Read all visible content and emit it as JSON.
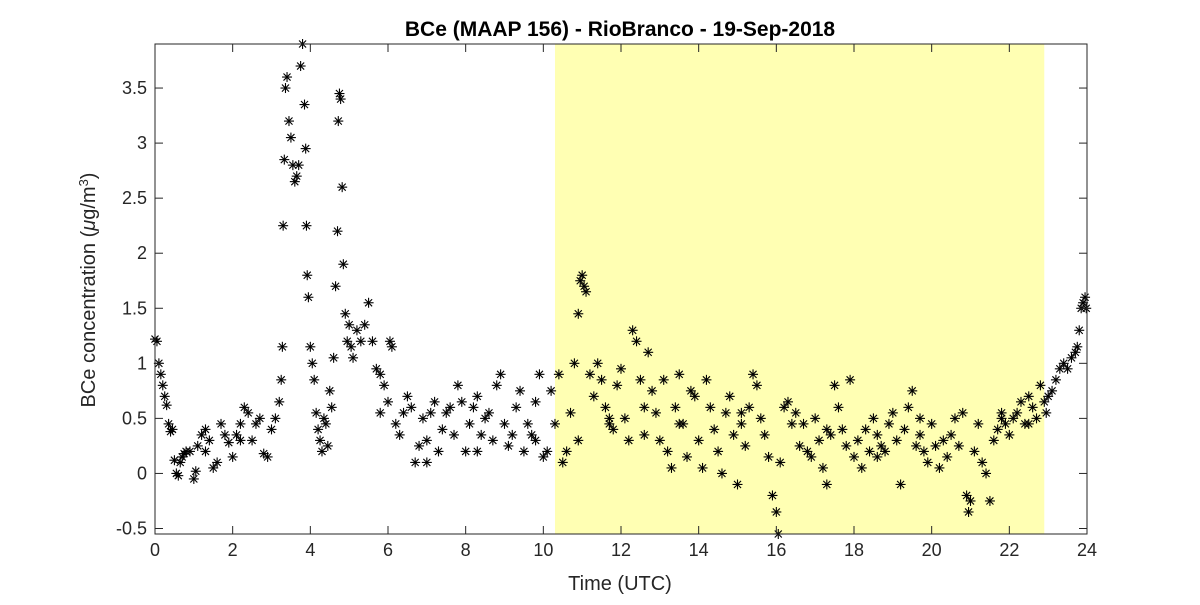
{
  "chart_data": {
    "type": "scatter",
    "title": "BCe (MAAP 156) - RioBranco - 19-Sep-2018",
    "xlabel": "Time (UTC)",
    "ylabel_main": "BCe concentration (",
    "ylabel_mu": "μ",
    "ylabel_unit": "g/m",
    "ylabel_sup": "3",
    "ylabel_close": ")",
    "xlim": [
      0,
      24
    ],
    "ylim": [
      -0.55,
      3.9
    ],
    "x_ticks": [
      0,
      2,
      4,
      6,
      8,
      10,
      12,
      14,
      16,
      18,
      20,
      22,
      24
    ],
    "y_ticks": [
      -0.5,
      0,
      0.5,
      1,
      1.5,
      2,
      2.5,
      3,
      3.5
    ],
    "x_tick_labels": [
      "0",
      "2",
      "4",
      "6",
      "8",
      "10",
      "12",
      "14",
      "16",
      "18",
      "20",
      "22",
      "24"
    ],
    "y_tick_labels": [
      "-0.5",
      "0",
      "0.5",
      "1",
      "1.5",
      "2",
      "2.5",
      "3",
      "3.5"
    ],
    "marker": "asterisk",
    "marker_color": "#000000",
    "daylight_span": {
      "x_start": 10.3,
      "x_end": 22.9,
      "color": "#ffffb3"
    },
    "grid": false,
    "points": [
      [
        0.0,
        1.22
      ],
      [
        0.05,
        1.2
      ],
      [
        0.1,
        1.0
      ],
      [
        0.15,
        0.9
      ],
      [
        0.2,
        0.8
      ],
      [
        0.25,
        0.7
      ],
      [
        0.3,
        0.62
      ],
      [
        0.35,
        0.45
      ],
      [
        0.4,
        0.38
      ],
      [
        0.45,
        0.4
      ],
      [
        0.5,
        0.12
      ],
      [
        0.55,
        0.0
      ],
      [
        0.6,
        -0.02
      ],
      [
        0.65,
        0.1
      ],
      [
        0.7,
        0.15
      ],
      [
        0.75,
        0.18
      ],
      [
        0.8,
        0.2
      ],
      [
        0.9,
        0.2
      ],
      [
        1.0,
        -0.05
      ],
      [
        1.05,
        0.02
      ],
      [
        1.1,
        0.25
      ],
      [
        1.2,
        0.35
      ],
      [
        1.3,
        0.4
      ],
      [
        1.4,
        0.3
      ],
      [
        1.5,
        0.05
      ],
      [
        1.6,
        0.1
      ],
      [
        1.7,
        0.45
      ],
      [
        1.8,
        0.35
      ],
      [
        1.9,
        0.28
      ],
      [
        2.0,
        0.15
      ],
      [
        2.1,
        0.35
      ],
      [
        2.2,
        0.45
      ],
      [
        2.3,
        0.6
      ],
      [
        2.4,
        0.55
      ],
      [
        2.5,
        0.3
      ],
      [
        2.6,
        0.45
      ],
      [
        2.7,
        0.5
      ],
      [
        2.8,
        0.18
      ],
      [
        2.9,
        0.15
      ],
      [
        3.0,
        0.4
      ],
      [
        3.1,
        0.5
      ],
      [
        3.2,
        0.65
      ],
      [
        3.25,
        0.85
      ],
      [
        3.28,
        1.15
      ],
      [
        3.3,
        2.25
      ],
      [
        3.33,
        2.85
      ],
      [
        3.36,
        3.5
      ],
      [
        3.4,
        3.6
      ],
      [
        3.45,
        3.2
      ],
      [
        3.5,
        3.05
      ],
      [
        3.55,
        2.8
      ],
      [
        3.6,
        2.65
      ],
      [
        3.65,
        2.7
      ],
      [
        3.7,
        2.8
      ],
      [
        3.75,
        3.7
      ],
      [
        3.8,
        3.9
      ],
      [
        3.85,
        3.35
      ],
      [
        3.88,
        2.95
      ],
      [
        3.9,
        2.25
      ],
      [
        3.92,
        1.8
      ],
      [
        3.95,
        1.6
      ],
      [
        4.0,
        1.15
      ],
      [
        4.05,
        1.0
      ],
      [
        4.1,
        0.85
      ],
      [
        4.15,
        0.55
      ],
      [
        4.2,
        0.4
      ],
      [
        4.25,
        0.3
      ],
      [
        4.3,
        0.2
      ],
      [
        4.35,
        0.5
      ],
      [
        4.4,
        0.45
      ],
      [
        4.45,
        0.25
      ],
      [
        4.5,
        0.75
      ],
      [
        4.55,
        0.6
      ],
      [
        4.6,
        1.05
      ],
      [
        4.65,
        1.7
      ],
      [
        4.7,
        2.2
      ],
      [
        4.72,
        3.2
      ],
      [
        4.75,
        3.45
      ],
      [
        4.78,
        3.4
      ],
      [
        4.82,
        2.6
      ],
      [
        4.85,
        1.9
      ],
      [
        4.9,
        1.45
      ],
      [
        4.95,
        1.2
      ],
      [
        5.0,
        1.35
      ],
      [
        5.05,
        1.15
      ],
      [
        5.1,
        1.05
      ],
      [
        5.2,
        1.3
      ],
      [
        5.3,
        1.2
      ],
      [
        5.4,
        1.35
      ],
      [
        5.5,
        1.55
      ],
      [
        5.6,
        1.2
      ],
      [
        5.7,
        0.95
      ],
      [
        5.8,
        0.9
      ],
      [
        5.9,
        0.8
      ],
      [
        6.0,
        0.65
      ],
      [
        6.05,
        1.2
      ],
      [
        6.1,
        1.15
      ],
      [
        6.2,
        0.45
      ],
      [
        6.3,
        0.35
      ],
      [
        6.4,
        0.55
      ],
      [
        6.5,
        0.7
      ],
      [
        6.6,
        0.6
      ],
      [
        6.7,
        0.1
      ],
      [
        6.8,
        0.25
      ],
      [
        6.9,
        0.5
      ],
      [
        7.0,
        0.3
      ],
      [
        7.1,
        0.55
      ],
      [
        7.2,
        0.65
      ],
      [
        7.3,
        0.2
      ],
      [
        7.4,
        0.4
      ],
      [
        7.5,
        0.55
      ],
      [
        7.6,
        0.6
      ],
      [
        7.7,
        0.35
      ],
      [
        7.8,
        0.8
      ],
      [
        7.9,
        0.65
      ],
      [
        8.0,
        0.2
      ],
      [
        8.1,
        0.45
      ],
      [
        8.2,
        0.6
      ],
      [
        8.3,
        0.7
      ],
      [
        8.4,
        0.35
      ],
      [
        8.5,
        0.5
      ],
      [
        8.6,
        0.55
      ],
      [
        8.7,
        0.3
      ],
      [
        8.8,
        0.8
      ],
      [
        8.9,
        0.9
      ],
      [
        9.0,
        0.45
      ],
      [
        9.1,
        0.25
      ],
      [
        9.2,
        0.35
      ],
      [
        9.3,
        0.6
      ],
      [
        9.4,
        0.75
      ],
      [
        9.5,
        0.2
      ],
      [
        9.6,
        0.45
      ],
      [
        9.7,
        0.35
      ],
      [
        9.8,
        0.65
      ],
      [
        9.9,
        0.9
      ],
      [
        10.0,
        0.15
      ],
      [
        10.1,
        0.2
      ],
      [
        10.2,
        0.75
      ],
      [
        10.3,
        0.45
      ],
      [
        10.4,
        0.9
      ],
      [
        10.5,
        0.1
      ],
      [
        10.6,
        0.2
      ],
      [
        10.7,
        0.55
      ],
      [
        10.8,
        1.0
      ],
      [
        10.9,
        1.45
      ],
      [
        10.95,
        1.75
      ],
      [
        11.0,
        1.8
      ],
      [
        11.05,
        1.7
      ],
      [
        11.1,
        1.65
      ],
      [
        11.2,
        0.9
      ],
      [
        11.3,
        0.7
      ],
      [
        11.4,
        1.0
      ],
      [
        11.5,
        0.85
      ],
      [
        11.6,
        0.6
      ],
      [
        11.7,
        0.45
      ],
      [
        11.8,
        0.4
      ],
      [
        11.9,
        0.8
      ],
      [
        12.0,
        0.95
      ],
      [
        12.1,
        0.5
      ],
      [
        12.2,
        0.3
      ],
      [
        12.3,
        1.3
      ],
      [
        12.4,
        1.2
      ],
      [
        12.5,
        0.85
      ],
      [
        12.6,
        0.6
      ],
      [
        12.7,
        1.1
      ],
      [
        12.8,
        0.75
      ],
      [
        12.9,
        0.55
      ],
      [
        13.0,
        0.3
      ],
      [
        13.1,
        0.85
      ],
      [
        13.2,
        0.2
      ],
      [
        13.3,
        0.05
      ],
      [
        13.4,
        0.6
      ],
      [
        13.5,
        0.9
      ],
      [
        13.6,
        0.45
      ],
      [
        13.7,
        0.15
      ],
      [
        13.8,
        0.75
      ],
      [
        13.9,
        0.7
      ],
      [
        14.0,
        0.3
      ],
      [
        14.1,
        0.05
      ],
      [
        14.2,
        0.85
      ],
      [
        14.3,
        0.6
      ],
      [
        14.4,
        0.4
      ],
      [
        14.5,
        0.2
      ],
      [
        14.6,
        0.0
      ],
      [
        14.7,
        0.55
      ],
      [
        14.8,
        0.7
      ],
      [
        14.9,
        0.35
      ],
      [
        15.0,
        -0.1
      ],
      [
        15.1,
        0.45
      ],
      [
        15.2,
        0.25
      ],
      [
        15.3,
        0.6
      ],
      [
        15.4,
        0.9
      ],
      [
        15.5,
        0.8
      ],
      [
        15.6,
        0.5
      ],
      [
        15.7,
        0.35
      ],
      [
        15.8,
        0.15
      ],
      [
        15.9,
        -0.2
      ],
      [
        16.0,
        -0.35
      ],
      [
        16.05,
        -0.55
      ],
      [
        16.1,
        0.1
      ],
      [
        16.2,
        0.6
      ],
      [
        16.3,
        0.65
      ],
      [
        16.4,
        0.45
      ],
      [
        16.5,
        0.55
      ],
      [
        16.6,
        0.25
      ],
      [
        16.7,
        0.45
      ],
      [
        16.8,
        0.2
      ],
      [
        16.9,
        0.15
      ],
      [
        17.0,
        0.5
      ],
      [
        17.1,
        0.3
      ],
      [
        17.2,
        0.05
      ],
      [
        17.3,
        -0.1
      ],
      [
        17.4,
        0.35
      ],
      [
        17.5,
        0.8
      ],
      [
        17.6,
        0.6
      ],
      [
        17.7,
        0.4
      ],
      [
        17.8,
        0.25
      ],
      [
        17.9,
        0.85
      ],
      [
        18.0,
        0.15
      ],
      [
        18.1,
        0.3
      ],
      [
        18.2,
        0.05
      ],
      [
        18.3,
        0.4
      ],
      [
        18.4,
        0.2
      ],
      [
        18.5,
        0.5
      ],
      [
        18.6,
        0.35
      ],
      [
        18.7,
        0.25
      ],
      [
        18.8,
        0.2
      ],
      [
        18.9,
        0.45
      ],
      [
        19.0,
        0.55
      ],
      [
        19.1,
        0.3
      ],
      [
        19.2,
        -0.1
      ],
      [
        19.3,
        0.4
      ],
      [
        19.4,
        0.6
      ],
      [
        19.5,
        0.75
      ],
      [
        19.6,
        0.25
      ],
      [
        19.7,
        0.35
      ],
      [
        19.8,
        0.2
      ],
      [
        19.9,
        0.1
      ],
      [
        20.0,
        0.45
      ],
      [
        20.1,
        0.25
      ],
      [
        20.2,
        0.05
      ],
      [
        20.3,
        0.3
      ],
      [
        20.4,
        0.15
      ],
      [
        20.5,
        0.35
      ],
      [
        20.6,
        0.5
      ],
      [
        20.7,
        0.25
      ],
      [
        20.8,
        0.55
      ],
      [
        20.9,
        -0.2
      ],
      [
        20.95,
        -0.35
      ],
      [
        21.0,
        -0.25
      ],
      [
        21.1,
        0.2
      ],
      [
        21.2,
        0.45
      ],
      [
        21.3,
        0.1
      ],
      [
        21.4,
        0.0
      ],
      [
        21.5,
        -0.25
      ],
      [
        21.6,
        0.3
      ],
      [
        21.7,
        0.4
      ],
      [
        21.8,
        0.55
      ],
      [
        21.9,
        0.45
      ],
      [
        22.0,
        0.35
      ],
      [
        22.1,
        0.5
      ],
      [
        22.2,
        0.55
      ],
      [
        22.3,
        0.65
      ],
      [
        22.4,
        0.45
      ],
      [
        22.5,
        0.7
      ],
      [
        22.6,
        0.6
      ],
      [
        22.7,
        0.5
      ],
      [
        22.8,
        0.8
      ],
      [
        22.9,
        0.65
      ],
      [
        23.0,
        0.7
      ],
      [
        23.1,
        0.75
      ],
      [
        23.2,
        0.85
      ],
      [
        23.3,
        0.95
      ],
      [
        23.4,
        1.0
      ],
      [
        23.5,
        0.95
      ],
      [
        23.6,
        1.05
      ],
      [
        23.7,
        1.1
      ],
      [
        23.75,
        1.15
      ],
      [
        23.8,
        1.3
      ],
      [
        23.85,
        1.5
      ],
      [
        23.9,
        1.55
      ],
      [
        23.95,
        1.6
      ],
      [
        23.98,
        1.5
      ],
      [
        22.95,
        0.55
      ],
      [
        22.5,
        0.45
      ],
      [
        21.8,
        0.5
      ],
      [
        19.7,
        0.5
      ],
      [
        18.6,
        0.15
      ],
      [
        17.3,
        0.4
      ],
      [
        15.1,
        0.55
      ],
      [
        13.5,
        0.45
      ],
      [
        12.6,
        0.35
      ],
      [
        11.7,
        0.5
      ],
      [
        10.9,
        0.3
      ],
      [
        9.8,
        0.3
      ],
      [
        8.3,
        0.2
      ],
      [
        7.0,
        0.1
      ],
      [
        5.8,
        0.55
      ],
      [
        1.3,
        0.2
      ],
      [
        2.2,
        0.3
      ]
    ]
  }
}
